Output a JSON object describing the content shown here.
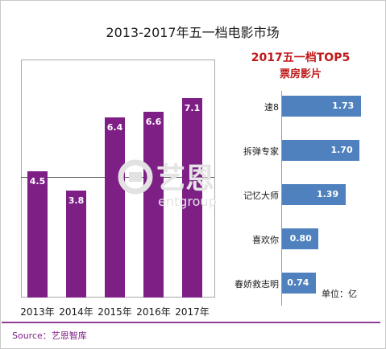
{
  "title": "2013-2017年五一档电影市场",
  "chart_data": [
    {
      "type": "bar",
      "title": "2013-2017年五一档电影市场",
      "categories": [
        "2013年",
        "2014年",
        "2015年",
        "2016年",
        "2017年"
      ],
      "values": [
        4.5,
        3.8,
        6.4,
        6.6,
        7.1
      ],
      "value_labels": [
        "4.5",
        "3.8",
        "6.4",
        "6.6",
        "7.1"
      ],
      "ylim": [
        0,
        8
      ],
      "grid": false,
      "bar_color": "#7e1f86"
    },
    {
      "type": "bar",
      "orientation": "horizontal",
      "title_line1": "2017五一档TOP5",
      "title_line2": "票房影片",
      "categories": [
        "速8",
        "拆弹专家",
        "记忆大师",
        "喜欢你",
        "春娇救志明"
      ],
      "values": [
        1.73,
        1.7,
        1.39,
        0.8,
        0.74
      ],
      "value_labels": [
        "1.73",
        "1.70",
        "1.39",
        "0.80",
        "0.74"
      ],
      "xlim": [
        0,
        2
      ],
      "bar_color": "#4e81bd",
      "title_color": "#c0191b"
    }
  ],
  "unit_label": "单位：亿",
  "source": "Source：艺恩智库",
  "watermark": "艺恩 entgroup",
  "accent_color": "#8d3d93"
}
